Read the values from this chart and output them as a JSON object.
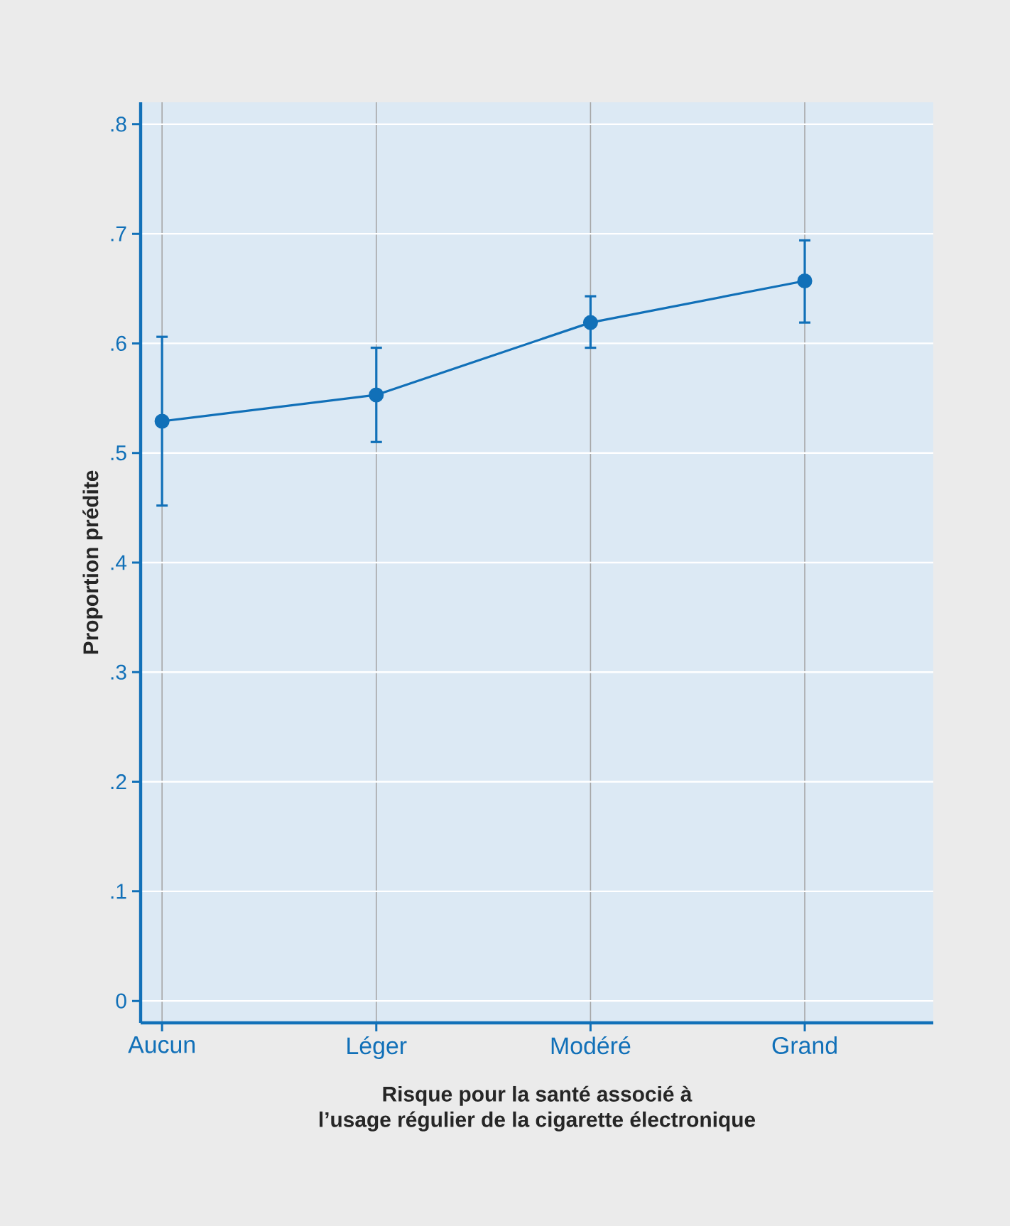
{
  "chart_data": {
    "type": "line",
    "xlabel": "Risque pour la santé associé à\nl’usage régulier de la cigarette électronique",
    "ylabel": "Proportion prédite",
    "categories": [
      "Aucun",
      "Léger",
      "Modéré",
      "Grand"
    ],
    "series": [
      {
        "color": "#1170b8",
        "values": [
          0.529,
          0.553,
          0.619,
          0.657
        ],
        "errors": [
          [
            0.452,
            0.606
          ],
          [
            0.51,
            0.596
          ],
          [
            0.596,
            0.643
          ],
          [
            0.619,
            0.694
          ]
        ]
      }
    ],
    "ylim": [
      -0.02,
      0.82
    ],
    "yticks": [
      {
        "value": 0,
        "label": "0"
      },
      {
        "value": 0.1,
        "label": ".1"
      },
      {
        "value": 0.2,
        "label": ".2"
      },
      {
        "value": 0.3,
        "label": ".3"
      },
      {
        "value": 0.4,
        "label": ".4"
      },
      {
        "value": 0.5,
        "label": ".5"
      },
      {
        "value": 0.6,
        "label": ".6"
      },
      {
        "value": 0.7,
        "label": ".7"
      },
      {
        "value": 0.8,
        "label": ".8"
      }
    ],
    "grid": true,
    "marker": "circle",
    "line_style": "solid"
  }
}
